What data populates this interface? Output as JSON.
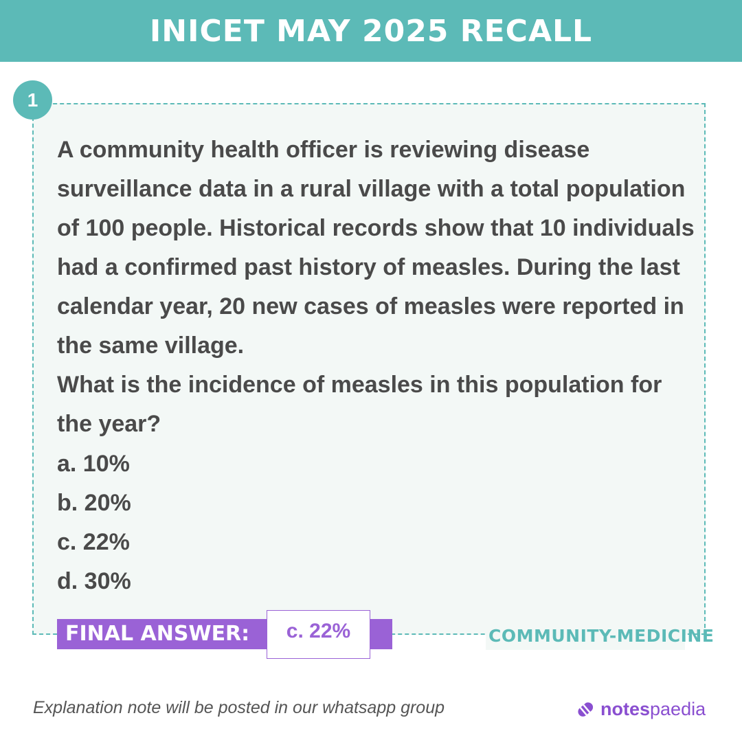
{
  "header": {
    "title": "INICET MAY 2025 RECALL"
  },
  "question": {
    "number": "1",
    "paragraph1": "A community health officer is reviewing disease surveillance data in a rural village with a total population of 100 people. Historical records show that 10 individuals had a confirmed past history of measles. During the last calendar year, 20 new cases of measles were reported in the same village.",
    "paragraph2": "What is the incidence of measles in this population for the year?",
    "options": [
      "a. 10%",
      "b. 20%",
      "c. 22%",
      "d. 30%"
    ]
  },
  "answer": {
    "label": "FINAL ANSWER:",
    "value": "c. 22%"
  },
  "subject": "COMMUNITY-MEDICINE",
  "footer": {
    "note": "Explanation note will be posted in our whatsapp group"
  },
  "brand": {
    "bold": "notes",
    "light": "paedia"
  },
  "colors": {
    "teal": "#5cbab7",
    "purple": "#9a62d6",
    "text": "#4a4a4a"
  }
}
